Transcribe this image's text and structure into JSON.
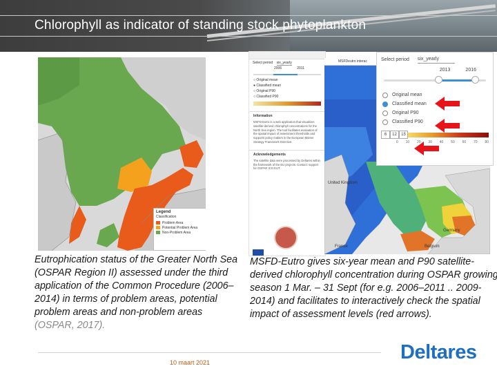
{
  "slide": {
    "title": "Chlorophyll as indicator of standing stock phytoplankton",
    "date": "10 maart 2021",
    "logo_text": "Deltares"
  },
  "left_map": {
    "legend_title": "Legend",
    "legend_subtitle": "Classification",
    "legend_items": [
      {
        "label": "Problem Area",
        "color": "#e85b1b"
      },
      {
        "label": "Potential Problem Area",
        "color": "#f4a21e"
      },
      {
        "label": "Non-Problem Area",
        "color": "#69a84f"
      }
    ]
  },
  "app_screenshot": {
    "select_label": "Select period",
    "select_value": "six_yearly",
    "slider_years": [
      "2006",
      "2011"
    ],
    "options": [
      "Original mean",
      "Classified mean",
      "Original P90",
      "Classified P90"
    ],
    "information_header": "Information",
    "information_text": "MSFD-Eutro is a web application that visualizes satellite-derived chlorophyll concentrations for the North Sea region. The tool facilitates evaluation of the spatial impact of assessment thresholds and supports policy makers in the European Marine Strategy Framework Directive.",
    "acknowledgements_header": "Acknowledgements",
    "acknowledgements_text": "The satellite data were processed by Deltares within the framework of the EU projects. Contact: support for OSPAR ICG EUT."
  },
  "right_map": {
    "header_label": "MSFDeutro interac",
    "places": [
      "United Kingdom",
      "Germany",
      "France",
      "Belgium"
    ]
  },
  "panel": {
    "select_label": "Select period",
    "select_value": "six_yearly",
    "years": [
      "2013",
      "2016"
    ],
    "options": [
      {
        "label": "Original mean",
        "selected": false
      },
      {
        "label": "Classified mean",
        "selected": true
      },
      {
        "label": "Original P90",
        "selected": false
      },
      {
        "label": "Classified P90",
        "selected": false
      }
    ],
    "scale_values": [
      "6",
      "12",
      "15"
    ],
    "scale_ticks": [
      "0",
      "10",
      "20",
      "30",
      "40",
      "50",
      "60",
      "70",
      "80"
    ],
    "arrow_color": "#e8141b"
  },
  "captions": {
    "left_text": "Eutrophication status of the Greater North Sea (OSPAR Region II) assessed under the third application of the Common Procedure (2006–2014) in terms of problem areas, potential problem areas and non-problem areas ",
    "left_cite": "(OSPAR, 2017).",
    "right_text": "MSFD-Eutro gives six-year mean and P90 satellite-derived chlorophyll concentration during OSPAR  growing season 1 Mar. – 31 Sept (for e.g. 2006–2011 .. 2009-2014) and facilitates to interactively check the spatial impact of assessment levels (red arrows)."
  }
}
